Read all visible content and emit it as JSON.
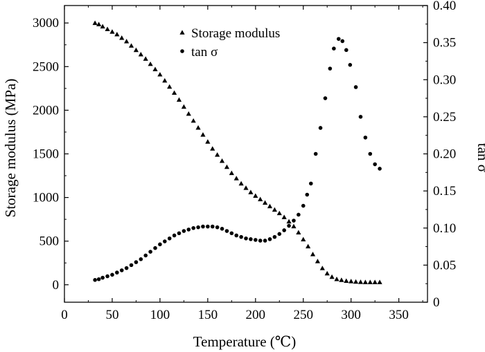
{
  "chart_data": {
    "type": "scatter",
    "xlabel": "Temperature (℃)",
    "ylabel_left": "Storage modulus (MPa)",
    "ylabel_right": "tan σ",
    "xlim": [
      0,
      380
    ],
    "ylim_left": [
      -200,
      3200
    ],
    "ylim_right": [
      0,
      0.4
    ],
    "x_ticks": [
      "0",
      "50",
      "100",
      "150",
      "200",
      "250",
      "300",
      "350"
    ],
    "y_left_ticks": [
      "0",
      "500",
      "1000",
      "1500",
      "2000",
      "2500",
      "3000"
    ],
    "y_right_ticks": [
      "0",
      "0.05",
      "0.10",
      "0.15",
      "0.20",
      "0.25",
      "0.30",
      "0.35",
      "0.40"
    ],
    "legend_position": "top-center",
    "grid": false,
    "series": [
      {
        "name": "Storage modulus",
        "axis": "left",
        "marker": "triangle",
        "color": "#000000",
        "x": [
          32,
          36,
          40,
          45,
          50,
          55,
          60,
          65,
          70,
          75,
          80,
          85,
          90,
          95,
          100,
          105,
          110,
          115,
          120,
          125,
          130,
          135,
          140,
          145,
          150,
          155,
          160,
          165,
          170,
          175,
          180,
          185,
          190,
          195,
          200,
          205,
          210,
          215,
          220,
          225,
          230,
          235,
          240,
          245,
          250,
          255,
          260,
          265,
          270,
          275,
          280,
          285,
          290,
          295,
          300,
          305,
          310,
          315,
          320,
          325,
          330
        ],
        "y": [
          3000,
          2985,
          2960,
          2930,
          2900,
          2870,
          2830,
          2790,
          2740,
          2690,
          2640,
          2590,
          2530,
          2470,
          2410,
          2340,
          2270,
          2200,
          2120,
          2040,
          1960,
          1880,
          1800,
          1720,
          1640,
          1560,
          1490,
          1420,
          1350,
          1280,
          1220,
          1160,
          1110,
          1060,
          1020,
          980,
          940,
          900,
          860,
          820,
          775,
          725,
          670,
          600,
          520,
          440,
          350,
          270,
          190,
          130,
          90,
          65,
          55,
          45,
          40,
          35,
          32,
          30,
          30,
          30,
          30
        ]
      },
      {
        "name": "tan σ",
        "axis": "right",
        "marker": "circle",
        "color": "#000000",
        "x": [
          32,
          36,
          40,
          45,
          50,
          55,
          60,
          65,
          70,
          75,
          80,
          85,
          90,
          95,
          100,
          105,
          110,
          115,
          120,
          125,
          130,
          135,
          140,
          145,
          150,
          155,
          160,
          165,
          170,
          175,
          180,
          185,
          190,
          195,
          200,
          205,
          210,
          215,
          220,
          225,
          230,
          235,
          240,
          245,
          250,
          254,
          258,
          263,
          268,
          273,
          278,
          282,
          287,
          291,
          295,
          299,
          305,
          310,
          315,
          320,
          325,
          330
        ],
        "y": [
          0.03,
          0.031,
          0.033,
          0.035,
          0.037,
          0.04,
          0.043,
          0.046,
          0.05,
          0.054,
          0.058,
          0.063,
          0.068,
          0.073,
          0.078,
          0.082,
          0.086,
          0.09,
          0.093,
          0.096,
          0.098,
          0.1,
          0.101,
          0.102,
          0.102,
          0.102,
          0.101,
          0.099,
          0.096,
          0.093,
          0.09,
          0.088,
          0.086,
          0.085,
          0.084,
          0.083,
          0.083,
          0.085,
          0.088,
          0.092,
          0.097,
          0.103,
          0.11,
          0.118,
          0.13,
          0.145,
          0.16,
          0.2,
          0.235,
          0.275,
          0.315,
          0.342,
          0.355,
          0.352,
          0.34,
          0.32,
          0.29,
          0.25,
          0.222,
          0.2,
          0.186,
          0.18
        ]
      }
    ]
  }
}
